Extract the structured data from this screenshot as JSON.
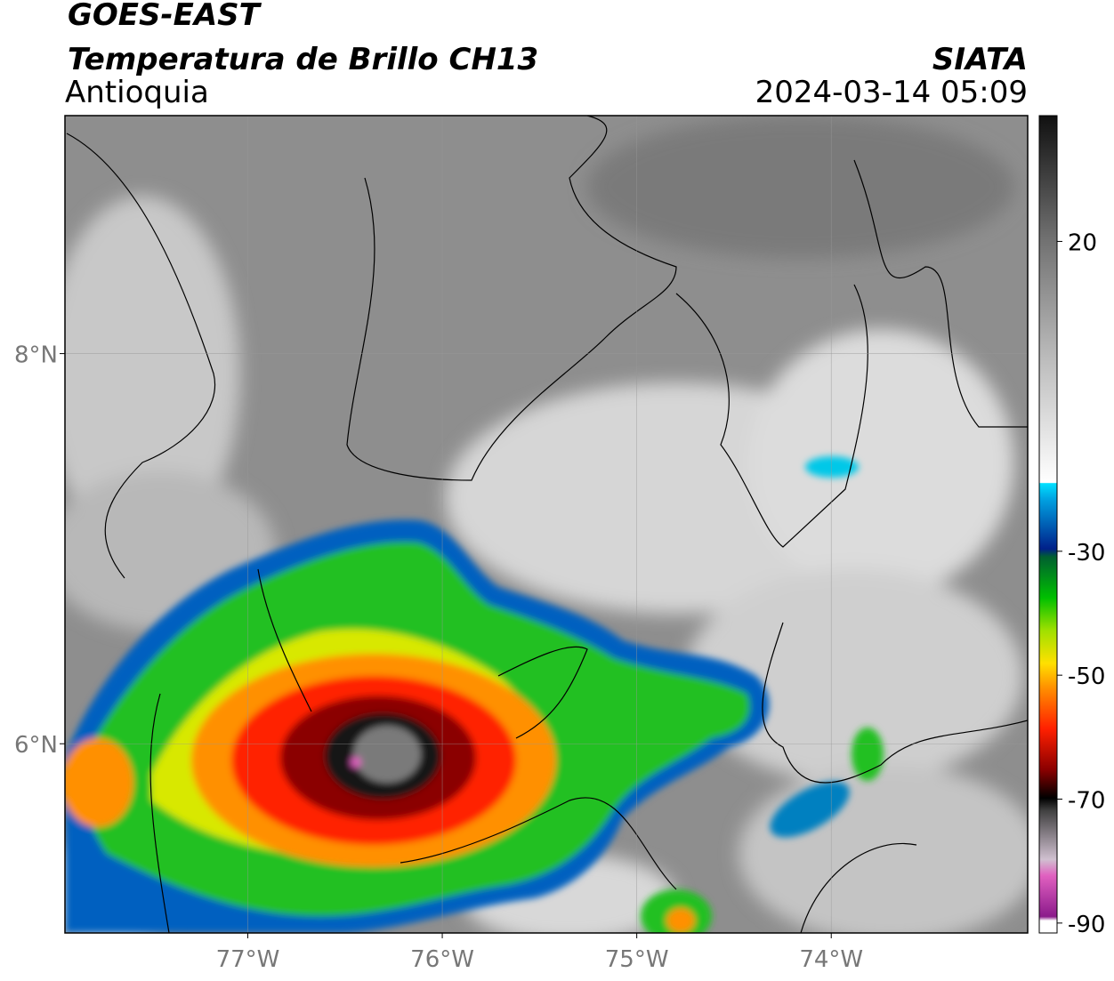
{
  "header": {
    "title": "GOES-EAST",
    "subtitle": "Temperatura de Brillo CH13",
    "region": "Antioquia",
    "source": "SIATA",
    "datetime": "2024-03-14 05:09"
  },
  "map": {
    "xlim": [
      -77.94,
      -72.99
    ],
    "ylim": [
      5.03,
      9.22
    ],
    "xticks": [
      {
        "value": -77,
        "label": "77°W"
      },
      {
        "value": -76,
        "label": "76°W"
      },
      {
        "value": -75,
        "label": "75°W"
      },
      {
        "value": -74,
        "label": "74°W"
      }
    ],
    "yticks": [
      {
        "value": 6,
        "label": "6°N"
      },
      {
        "value": 8,
        "label": "8°N"
      }
    ],
    "grid": true
  },
  "colorbar": {
    "lim": [
      -91.6,
      40.3
    ],
    "ticks": [
      20,
      -30,
      -50,
      -70,
      -90
    ]
  }
}
